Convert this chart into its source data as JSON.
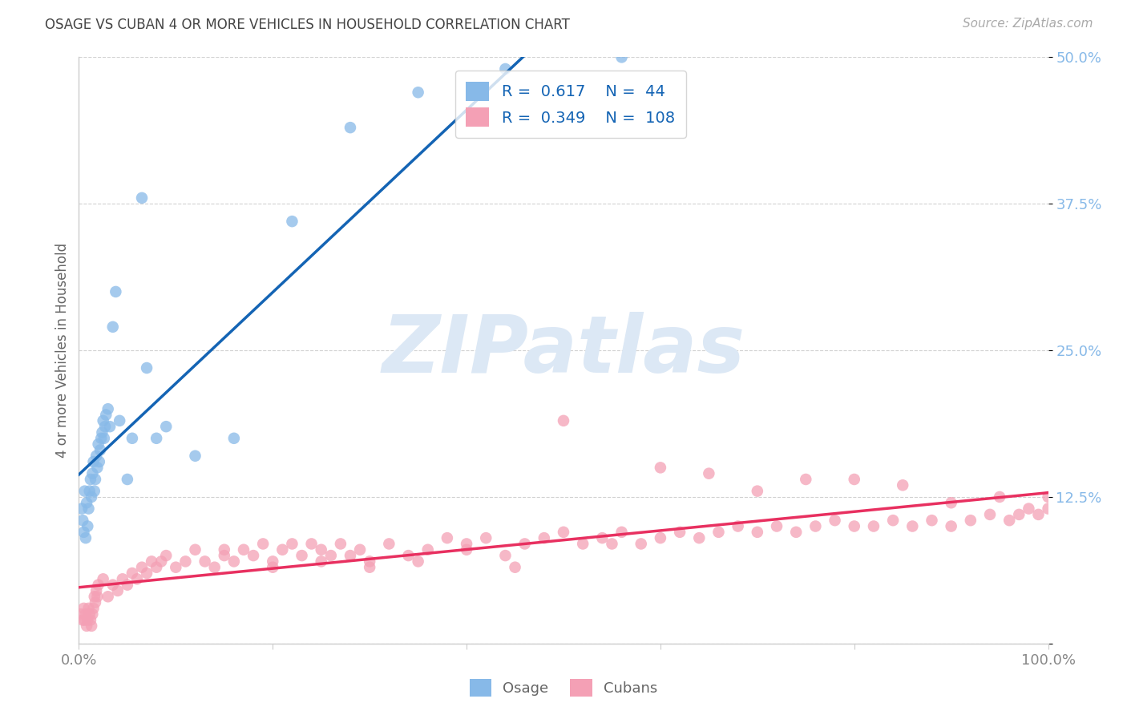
{
  "title": "OSAGE VS CUBAN 4 OR MORE VEHICLES IN HOUSEHOLD CORRELATION CHART",
  "source": "Source: ZipAtlas.com",
  "ylabel": "4 or more Vehicles in Household",
  "xlim": [
    0,
    1.0
  ],
  "ylim": [
    0,
    0.5
  ],
  "xtick_positions": [
    0.0,
    0.2,
    0.4,
    0.6,
    0.8,
    1.0
  ],
  "xticklabels": [
    "0.0%",
    "",
    "",
    "",
    "",
    "100.0%"
  ],
  "ytick_positions": [
    0.0,
    0.125,
    0.25,
    0.375,
    0.5
  ],
  "yticklabels": [
    "",
    "12.5%",
    "25.0%",
    "37.5%",
    "50.0%"
  ],
  "legend_R1": "0.617",
  "legend_N1": "44",
  "legend_R2": "0.349",
  "legend_N2": "108",
  "osage_scatter_color": "#87b9e8",
  "cuban_scatter_color": "#f4a0b5",
  "osage_line_color": "#1464b4",
  "cuban_line_color": "#e83060",
  "legend_text_color": "#1464b4",
  "background_color": "#ffffff",
  "watermark_color": "#dce8f5",
  "title_color": "#444444",
  "axis_label_color": "#666666",
  "ytick_color": "#87b9e8",
  "xtick_color": "#888888",
  "grid_color": "#cccccc",
  "source_color": "#aaaaaa",
  "bottom_legend_color": "#666666",
  "osage_x": [
    0.003,
    0.004,
    0.005,
    0.006,
    0.007,
    0.008,
    0.009,
    0.01,
    0.011,
    0.012,
    0.013,
    0.014,
    0.015,
    0.016,
    0.017,
    0.018,
    0.019,
    0.02,
    0.021,
    0.022,
    0.023,
    0.024,
    0.025,
    0.026,
    0.027,
    0.028,
    0.03,
    0.032,
    0.035,
    0.038,
    0.042,
    0.05,
    0.055,
    0.065,
    0.07,
    0.08,
    0.09,
    0.12,
    0.16,
    0.22,
    0.28,
    0.35,
    0.44,
    0.56
  ],
  "osage_y": [
    0.115,
    0.105,
    0.095,
    0.13,
    0.09,
    0.12,
    0.1,
    0.115,
    0.13,
    0.14,
    0.125,
    0.145,
    0.155,
    0.13,
    0.14,
    0.16,
    0.15,
    0.17,
    0.155,
    0.165,
    0.175,
    0.18,
    0.19,
    0.175,
    0.185,
    0.195,
    0.2,
    0.185,
    0.27,
    0.3,
    0.19,
    0.14,
    0.175,
    0.38,
    0.235,
    0.175,
    0.185,
    0.16,
    0.175,
    0.36,
    0.44,
    0.47,
    0.49,
    0.5
  ],
  "cuban_x": [
    0.002,
    0.004,
    0.005,
    0.006,
    0.007,
    0.008,
    0.009,
    0.01,
    0.011,
    0.012,
    0.013,
    0.014,
    0.015,
    0.016,
    0.017,
    0.018,
    0.019,
    0.02,
    0.025,
    0.03,
    0.035,
    0.04,
    0.045,
    0.05,
    0.055,
    0.06,
    0.065,
    0.07,
    0.075,
    0.08,
    0.085,
    0.09,
    0.1,
    0.11,
    0.12,
    0.13,
    0.14,
    0.15,
    0.16,
    0.17,
    0.18,
    0.19,
    0.2,
    0.21,
    0.22,
    0.23,
    0.24,
    0.25,
    0.26,
    0.27,
    0.28,
    0.29,
    0.3,
    0.32,
    0.34,
    0.36,
    0.38,
    0.4,
    0.42,
    0.44,
    0.46,
    0.48,
    0.5,
    0.52,
    0.54,
    0.56,
    0.58,
    0.6,
    0.62,
    0.64,
    0.66,
    0.68,
    0.7,
    0.72,
    0.74,
    0.76,
    0.78,
    0.8,
    0.82,
    0.84,
    0.86,
    0.88,
    0.9,
    0.92,
    0.94,
    0.96,
    0.97,
    0.98,
    0.99,
    1.0,
    0.15,
    0.2,
    0.25,
    0.3,
    0.35,
    0.4,
    0.45,
    0.5,
    0.55,
    0.6,
    0.65,
    0.7,
    0.75,
    0.8,
    0.85,
    0.9,
    0.95,
    1.0
  ],
  "cuban_y": [
    0.025,
    0.02,
    0.03,
    0.02,
    0.025,
    0.015,
    0.02,
    0.03,
    0.025,
    0.02,
    0.015,
    0.025,
    0.03,
    0.04,
    0.035,
    0.045,
    0.04,
    0.05,
    0.055,
    0.04,
    0.05,
    0.045,
    0.055,
    0.05,
    0.06,
    0.055,
    0.065,
    0.06,
    0.07,
    0.065,
    0.07,
    0.075,
    0.065,
    0.07,
    0.08,
    0.07,
    0.065,
    0.075,
    0.07,
    0.08,
    0.075,
    0.085,
    0.07,
    0.08,
    0.085,
    0.075,
    0.085,
    0.08,
    0.075,
    0.085,
    0.075,
    0.08,
    0.07,
    0.085,
    0.075,
    0.08,
    0.09,
    0.085,
    0.09,
    0.075,
    0.085,
    0.09,
    0.095,
    0.085,
    0.09,
    0.095,
    0.085,
    0.09,
    0.095,
    0.09,
    0.095,
    0.1,
    0.095,
    0.1,
    0.095,
    0.1,
    0.105,
    0.1,
    0.1,
    0.105,
    0.1,
    0.105,
    0.1,
    0.105,
    0.11,
    0.105,
    0.11,
    0.115,
    0.11,
    0.115,
    0.08,
    0.065,
    0.07,
    0.065,
    0.07,
    0.08,
    0.065,
    0.19,
    0.085,
    0.15,
    0.145,
    0.13,
    0.14,
    0.14,
    0.135,
    0.12,
    0.125,
    0.125
  ]
}
